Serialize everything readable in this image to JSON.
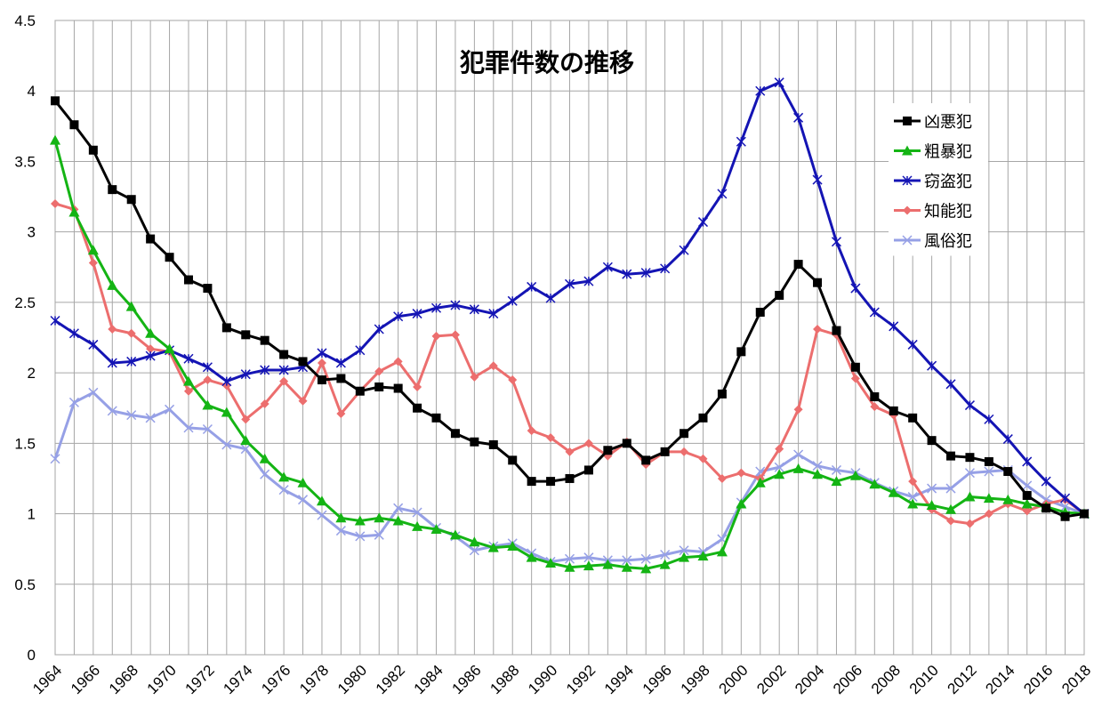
{
  "chart_data": {
    "type": "line",
    "title": "犯罪件数の推移",
    "xlabel": "",
    "ylabel": "",
    "ylim": [
      0,
      4.5
    ],
    "yticks": [
      "0",
      "0.5",
      "1",
      "1.5",
      "2",
      "2.5",
      "3",
      "3.5",
      "4",
      "4.5"
    ],
    "xticks": [
      "1964",
      "1966",
      "1968",
      "1970",
      "1972",
      "1974",
      "1976",
      "1978",
      "1980",
      "1982",
      "1984",
      "1986",
      "1988",
      "1990",
      "1992",
      "1994",
      "1996",
      "1998",
      "2000",
      "2002",
      "2004",
      "2006",
      "2008",
      "2010",
      "2012",
      "2014",
      "2016",
      "2018"
    ],
    "grid": true,
    "legend_position": "top-right",
    "x": [
      1964,
      1965,
      1966,
      1967,
      1968,
      1969,
      1970,
      1971,
      1972,
      1973,
      1974,
      1975,
      1976,
      1977,
      1978,
      1979,
      1980,
      1981,
      1982,
      1983,
      1984,
      1985,
      1986,
      1987,
      1988,
      1989,
      1990,
      1991,
      1992,
      1993,
      1994,
      1995,
      1996,
      1997,
      1998,
      1999,
      2000,
      2001,
      2002,
      2003,
      2004,
      2005,
      2006,
      2007,
      2008,
      2009,
      2010,
      2011,
      2012,
      2013,
      2014,
      2015,
      2016,
      2017,
      2018
    ],
    "series": [
      {
        "name": "凶悪犯",
        "color": "#000000",
        "marker": "square",
        "values": [
          3.93,
          3.76,
          3.58,
          3.3,
          3.23,
          2.95,
          2.82,
          2.66,
          2.6,
          2.32,
          2.27,
          2.23,
          2.13,
          2.08,
          1.95,
          1.96,
          1.87,
          1.9,
          1.89,
          1.75,
          1.68,
          1.57,
          1.51,
          1.49,
          1.38,
          1.23,
          1.23,
          1.25,
          1.31,
          1.45,
          1.5,
          1.38,
          1.44,
          1.57,
          1.68,
          1.85,
          2.15,
          2.43,
          2.55,
          2.77,
          2.64,
          2.3,
          2.04,
          1.83,
          1.73,
          1.68,
          1.52,
          1.41,
          1.4,
          1.37,
          1.3,
          1.13,
          1.04,
          0.98,
          1.0
        ]
      },
      {
        "name": "粗暴犯",
        "color": "#14b414",
        "marker": "triangle",
        "values": [
          3.65,
          3.14,
          2.87,
          2.62,
          2.47,
          2.28,
          2.17,
          1.94,
          1.77,
          1.72,
          1.52,
          1.39,
          1.26,
          1.22,
          1.09,
          0.97,
          0.95,
          0.97,
          0.95,
          0.91,
          0.89,
          0.85,
          0.8,
          0.76,
          0.77,
          0.69,
          0.65,
          0.62,
          0.63,
          0.64,
          0.62,
          0.61,
          0.64,
          0.69,
          0.7,
          0.73,
          1.07,
          1.22,
          1.28,
          1.32,
          1.28,
          1.23,
          1.27,
          1.21,
          1.15,
          1.07,
          1.06,
          1.03,
          1.12,
          1.11,
          1.1,
          1.07,
          1.05,
          1.01,
          1.0
        ]
      },
      {
        "name": "窃盗犯",
        "color": "#1414b4",
        "marker": "star",
        "values": [
          2.37,
          2.28,
          2.2,
          2.07,
          2.08,
          2.12,
          2.16,
          2.1,
          2.04,
          1.94,
          1.99,
          2.02,
          2.02,
          2.04,
          2.14,
          2.07,
          2.16,
          2.31,
          2.4,
          2.42,
          2.46,
          2.48,
          2.45,
          2.42,
          2.51,
          2.61,
          2.53,
          2.63,
          2.65,
          2.75,
          2.7,
          2.71,
          2.74,
          2.87,
          3.07,
          3.27,
          3.64,
          4.0,
          4.06,
          3.81,
          3.37,
          2.93,
          2.6,
          2.43,
          2.33,
          2.2,
          2.05,
          1.92,
          1.77,
          1.67,
          1.53,
          1.37,
          1.23,
          1.11,
          1.0
        ]
      },
      {
        "name": "知能犯",
        "color": "#ec6e6e",
        "marker": "diamond",
        "values": [
          3.2,
          3.16,
          2.78,
          2.31,
          2.28,
          2.17,
          2.15,
          1.87,
          1.95,
          1.91,
          1.67,
          1.78,
          1.94,
          1.8,
          2.07,
          1.71,
          1.87,
          2.01,
          2.08,
          1.9,
          2.26,
          2.27,
          1.97,
          2.05,
          1.95,
          1.59,
          1.54,
          1.44,
          1.5,
          1.41,
          1.51,
          1.35,
          1.44,
          1.44,
          1.39,
          1.25,
          1.29,
          1.25,
          1.46,
          1.74,
          2.31,
          2.27,
          1.96,
          1.76,
          1.7,
          1.23,
          1.03,
          0.95,
          0.93,
          1.0,
          1.07,
          1.02,
          1.07,
          1.1,
          1.0
        ]
      },
      {
        "name": "風俗犯",
        "color": "#96a0e6",
        "marker": "x",
        "values": [
          1.39,
          1.79,
          1.86,
          1.73,
          1.7,
          1.68,
          1.74,
          1.61,
          1.6,
          1.49,
          1.46,
          1.28,
          1.17,
          1.1,
          0.99,
          0.88,
          0.84,
          0.85,
          1.04,
          1.01,
          0.9,
          0.84,
          0.74,
          0.77,
          0.79,
          0.72,
          0.66,
          0.68,
          0.69,
          0.67,
          0.67,
          0.68,
          0.71,
          0.74,
          0.73,
          0.82,
          1.08,
          1.3,
          1.33,
          1.42,
          1.34,
          1.31,
          1.29,
          1.22,
          1.16,
          1.12,
          1.18,
          1.18,
          1.29,
          1.3,
          1.31,
          1.2,
          1.1,
          1.05,
          1.0
        ]
      }
    ]
  }
}
